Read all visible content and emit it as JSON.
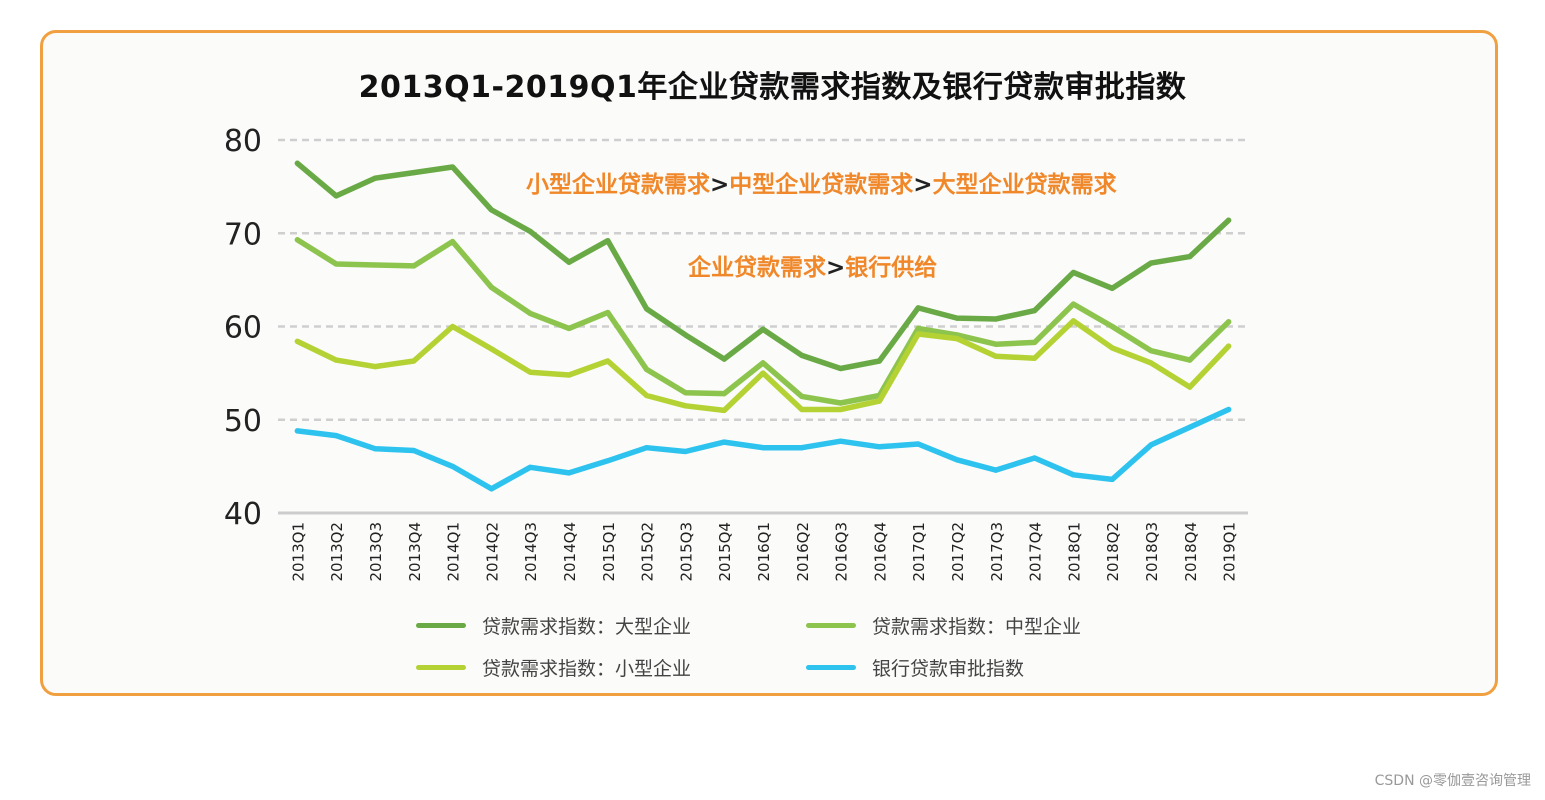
{
  "chart_data": {
    "type": "line",
    "title": "2013Q1-2019Q1年企业贷款需求指数及银行贷款审批指数",
    "xlabel": "",
    "ylabel": "",
    "ylim": [
      40,
      80
    ],
    "yticks": [
      40,
      50,
      60,
      70,
      80
    ],
    "grid": true,
    "categories": [
      "2013Q1",
      "2013Q2",
      "2013Q3",
      "2013Q4",
      "2014Q1",
      "2014Q2",
      "2014Q3",
      "2014Q4",
      "2015Q1",
      "2015Q2",
      "2015Q3",
      "2015Q4",
      "2016Q1",
      "2016Q2",
      "2016Q3",
      "2016Q4",
      "2017Q1",
      "2017Q2",
      "2017Q3",
      "2017Q4",
      "2018Q1",
      "2018Q2",
      "2018Q3",
      "2018Q4",
      "2019Q1"
    ],
    "series": [
      {
        "name": "贷款需求指数：大型企业",
        "color": "#6aaa46",
        "values": [
          77.5,
          74.0,
          75.9,
          76.5,
          77.1,
          72.5,
          70.2,
          66.9,
          69.2,
          61.9,
          59.1,
          56.5,
          59.7,
          56.9,
          55.5,
          56.3,
          62.0,
          60.9,
          60.8,
          61.7,
          65.8,
          64.1,
          66.8,
          67.5,
          71.4
        ]
      },
      {
        "name": "贷款需求指数：中型企业",
        "color": "#8dc44e",
        "values": [
          69.3,
          66.7,
          66.6,
          66.5,
          69.1,
          64.2,
          61.4,
          59.8,
          61.5,
          55.4,
          52.9,
          52.8,
          56.1,
          52.5,
          51.8,
          52.6,
          59.8,
          59.1,
          58.1,
          58.3,
          62.4,
          60.0,
          57.4,
          56.4,
          60.5
        ]
      },
      {
        "name": "贷款需求指数：小型企业",
        "color": "#b4d233",
        "values": [
          58.4,
          56.4,
          55.7,
          56.3,
          60.0,
          57.6,
          55.1,
          54.8,
          56.3,
          52.6,
          51.5,
          51.0,
          55.0,
          51.1,
          51.1,
          52.0,
          59.2,
          58.7,
          56.8,
          56.6,
          60.6,
          57.7,
          56.1,
          53.5,
          57.9
        ]
      },
      {
        "name": "银行贷款审批指数",
        "color": "#2ec3ee",
        "values": [
          48.8,
          48.3,
          46.9,
          46.7,
          45.0,
          42.6,
          44.9,
          44.3,
          45.6,
          47.0,
          46.6,
          47.6,
          47.0,
          47.0,
          47.7,
          47.1,
          47.4,
          45.7,
          44.6,
          45.9,
          44.1,
          43.6,
          47.3,
          49.2,
          51.1
        ]
      }
    ],
    "annotations": {
      "line1": [
        "小型企业贷款需求",
        ">",
        "中型企业贷款需求",
        ">",
        "大型企业贷款需求"
      ],
      "line2": [
        "企业贷款需求",
        ">",
        "银行供给"
      ]
    }
  },
  "watermark": "CSDN @零伽壹咨询管理"
}
